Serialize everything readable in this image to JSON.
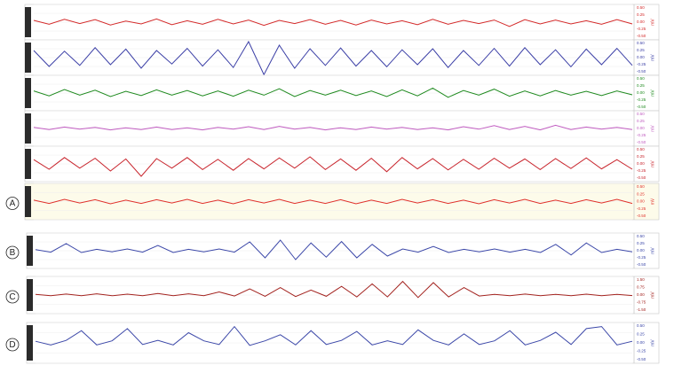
{
  "chart_data": [
    {
      "type": "line",
      "color": "#d42a2a",
      "y_label": "mV",
      "ylim": [
        -0.5,
        0.5
      ],
      "yticks": [
        {
          "value": 0.5,
          "label": "0.50"
        },
        {
          "value": 0.25,
          "label": "0.25"
        },
        {
          "value": 0,
          "label": "0.00"
        },
        {
          "value": -0.25,
          "label": "-0.25"
        },
        {
          "value": -0.5,
          "label": "-0.50"
        }
      ],
      "values": [
        0.05,
        -0.06,
        0.08,
        -0.04,
        0.07,
        -0.08,
        0.03,
        -0.05,
        0.09,
        -0.07,
        0.04,
        -0.06,
        0.08,
        -0.05,
        0.06,
        -0.09,
        0.05,
        -0.04,
        0.07,
        -0.06,
        0.05,
        -0.08,
        0.06,
        -0.05,
        0.04,
        -0.07,
        0.08,
        -0.06,
        0.05,
        -0.04,
        0.06,
        -0.12,
        0.07,
        -0.05,
        0.06,
        -0.05,
        0.04,
        -0.06,
        0.07,
        -0.05
      ]
    },
    {
      "type": "line",
      "color": "#3b3fa6",
      "y_label": "mV",
      "ylim": [
        -0.5,
        0.5
      ],
      "yticks": [
        {
          "value": 0.5,
          "label": "0.50"
        },
        {
          "value": 0.25,
          "label": "0.25"
        },
        {
          "value": 0,
          "label": "0.00"
        },
        {
          "value": -0.25,
          "label": "-0.25"
        },
        {
          "value": -0.5,
          "label": "-0.50"
        }
      ],
      "values": [
        0.2,
        -0.25,
        0.18,
        -0.22,
        0.28,
        -0.2,
        0.24,
        -0.3,
        0.2,
        -0.18,
        0.26,
        -0.24,
        0.22,
        -0.28,
        0.45,
        -0.48,
        0.35,
        -0.3,
        0.25,
        -0.22,
        0.27,
        -0.24,
        0.2,
        -0.26,
        0.22,
        -0.2,
        0.25,
        -0.28,
        0.2,
        -0.22,
        0.26,
        -0.24,
        0.28,
        -0.2,
        0.22,
        -0.26,
        0.24,
        -0.2,
        0.26,
        -0.22
      ]
    },
    {
      "type": "line",
      "color": "#1f8a1f",
      "y_label": "mV",
      "ylim": [
        -0.5,
        0.5
      ],
      "yticks": [
        {
          "value": 0.5,
          "label": "0.50"
        },
        {
          "value": 0.25,
          "label": "0.25"
        },
        {
          "value": 0,
          "label": "0.00"
        },
        {
          "value": -0.25,
          "label": "-0.25"
        },
        {
          "value": -0.5,
          "label": "-0.50"
        }
      ],
      "values": [
        0.06,
        -0.08,
        0.1,
        -0.06,
        0.08,
        -0.1,
        0.05,
        -0.07,
        0.09,
        -0.06,
        0.07,
        -0.08,
        0.06,
        -0.09,
        0.08,
        -0.06,
        0.12,
        -0.1,
        0.07,
        -0.06,
        0.08,
        -0.07,
        0.06,
        -0.1,
        0.09,
        -0.08,
        0.14,
        -0.12,
        0.07,
        -0.06,
        0.11,
        -0.09,
        0.06,
        -0.08,
        0.07,
        -0.06,
        0.05,
        -0.07,
        0.06,
        -0.05
      ]
    },
    {
      "type": "line",
      "color": "#c05bc0",
      "y_label": "mV",
      "ylim": [
        -0.5,
        0.5
      ],
      "yticks": [
        {
          "value": 0.5,
          "label": "0.50"
        },
        {
          "value": 0.25,
          "label": "0.25"
        },
        {
          "value": 0,
          "label": "0.00"
        },
        {
          "value": -0.25,
          "label": "-0.25"
        },
        {
          "value": -0.5,
          "label": "-0.50"
        }
      ],
      "values": [
        0.03,
        -0.03,
        0.04,
        -0.02,
        0.03,
        -0.04,
        0.02,
        -0.03,
        0.04,
        -0.03,
        0.02,
        -0.04,
        0.03,
        -0.02,
        0.05,
        -0.03,
        0.06,
        -0.02,
        0.03,
        -0.04,
        0.02,
        -0.03,
        0.04,
        -0.02,
        0.03,
        -0.03,
        0.02,
        -0.04,
        0.05,
        -0.02,
        0.08,
        -0.03,
        0.06,
        -0.04,
        0.09,
        -0.03,
        0.04,
        -0.02,
        0.03,
        -0.03
      ]
    },
    {
      "type": "line",
      "color": "#c8242c",
      "y_label": "mV",
      "ylim": [
        -0.5,
        0.5
      ],
      "yticks": [
        {
          "value": 0.5,
          "label": "0.50"
        },
        {
          "value": 0.25,
          "label": "0.25"
        },
        {
          "value": 0,
          "label": "0.00"
        },
        {
          "value": -0.25,
          "label": "-0.25"
        },
        {
          "value": -0.5,
          "label": "-0.50"
        }
      ],
      "values": [
        0.12,
        -0.15,
        0.18,
        -0.12,
        0.16,
        -0.2,
        0.14,
        -0.35,
        0.15,
        -0.12,
        0.18,
        -0.16,
        0.13,
        -0.18,
        0.15,
        -0.14,
        0.17,
        -0.12,
        0.2,
        -0.16,
        0.14,
        -0.18,
        0.16,
        -0.22,
        0.18,
        -0.14,
        0.15,
        -0.17,
        0.13,
        -0.15,
        0.16,
        -0.12,
        0.14,
        -0.16,
        0.15,
        -0.13,
        0.17,
        -0.14,
        0.12,
        -0.15
      ]
    },
    {
      "type": "line",
      "color": "#e0302a",
      "y_label": "mV",
      "panel": "A",
      "ylim": [
        -0.5,
        0.5
      ],
      "yticks": [
        {
          "value": 0.5,
          "label": "0.50"
        },
        {
          "value": 0.25,
          "label": "0.25"
        },
        {
          "value": 0,
          "label": "0.00"
        },
        {
          "value": -0.25,
          "label": "-0.25"
        },
        {
          "value": -0.5,
          "label": "-0.50"
        }
      ],
      "values": [
        0.04,
        -0.05,
        0.06,
        -0.04,
        0.05,
        -0.06,
        0.04,
        -0.05,
        0.05,
        -0.04,
        0.06,
        -0.05,
        0.04,
        -0.06,
        0.05,
        -0.04,
        0.06,
        -0.05,
        0.04,
        -0.05,
        0.05,
        -0.06,
        0.04,
        -0.05,
        0.06,
        -0.04,
        0.05,
        -0.05,
        0.04,
        -0.06,
        0.05,
        -0.04,
        0.06,
        -0.05,
        0.04,
        -0.05,
        0.05,
        -0.04,
        0.06,
        -0.05
      ]
    },
    {
      "type": "line",
      "color": "#3b47a8",
      "y_label": "mV",
      "panel": "B",
      "ylim": [
        -0.5,
        0.5
      ],
      "yticks": [
        {
          "value": 0.5,
          "label": "0.50"
        },
        {
          "value": 0.25,
          "label": "0.25"
        },
        {
          "value": 0,
          "label": "0.00"
        },
        {
          "value": -0.25,
          "label": "-0.25"
        },
        {
          "value": -0.5,
          "label": "-0.50"
        }
      ],
      "values": [
        0.03,
        -0.04,
        0.2,
        -0.05,
        0.04,
        -0.03,
        0.05,
        -0.04,
        0.15,
        -0.05,
        0.04,
        -0.03,
        0.05,
        -0.04,
        0.25,
        -0.2,
        0.3,
        -0.25,
        0.22,
        -0.18,
        0.26,
        -0.2,
        0.18,
        -0.15,
        0.05,
        -0.04,
        0.12,
        -0.05,
        0.04,
        -0.03,
        0.05,
        -0.04,
        0.04,
        -0.05,
        0.18,
        -0.12,
        0.22,
        -0.05,
        0.04,
        -0.03
      ]
    },
    {
      "type": "line",
      "color": "#a3231f",
      "y_label": "mV",
      "panel": "C",
      "ylim": [
        -1.5,
        1.5
      ],
      "yticks": [
        {
          "value": 1.5,
          "label": "1.50"
        },
        {
          "value": 0.75,
          "label": "0.75"
        },
        {
          "value": 0,
          "label": "0.00"
        },
        {
          "value": -0.75,
          "label": "-0.75"
        },
        {
          "value": -1.5,
          "label": "-1.50"
        }
      ],
      "values": [
        0.05,
        -0.06,
        0.08,
        -0.05,
        0.1,
        -0.06,
        0.07,
        -0.05,
        0.12,
        -0.06,
        0.1,
        -0.05,
        0.25,
        -0.08,
        0.5,
        -0.1,
        0.6,
        -0.12,
        0.4,
        -0.1,
        0.7,
        -0.15,
        0.9,
        -0.15,
        1.1,
        -0.2,
        1.0,
        -0.15,
        0.6,
        -0.08,
        0.06,
        -0.05,
        0.08,
        -0.06,
        0.05,
        -0.05,
        0.07,
        -0.06,
        0.05,
        -0.04
      ]
    },
    {
      "type": "line",
      "color": "#3b47a8",
      "y_label": "mV",
      "panel": "D",
      "ylim": [
        -0.5,
        0.5
      ],
      "yticks": [
        {
          "value": 0.5,
          "label": "0.50"
        },
        {
          "value": 0.25,
          "label": "0.25"
        },
        {
          "value": 0,
          "label": "0.00"
        },
        {
          "value": -0.25,
          "label": "-0.25"
        },
        {
          "value": -0.5,
          "label": "-0.50"
        }
      ],
      "values": [
        0.04,
        -0.05,
        0.06,
        0.3,
        -0.05,
        0.05,
        0.35,
        -0.04,
        0.06,
        -0.05,
        0.25,
        0.05,
        -0.04,
        0.4,
        -0.06,
        0.05,
        0.2,
        -0.05,
        0.3,
        -0.04,
        0.06,
        0.28,
        -0.05,
        0.05,
        -0.04,
        0.32,
        0.06,
        -0.05,
        0.22,
        -0.04,
        0.05,
        0.3,
        -0.05,
        0.06,
        0.26,
        -0.04,
        0.35,
        0.4,
        -0.05,
        0.04
      ]
    }
  ]
}
